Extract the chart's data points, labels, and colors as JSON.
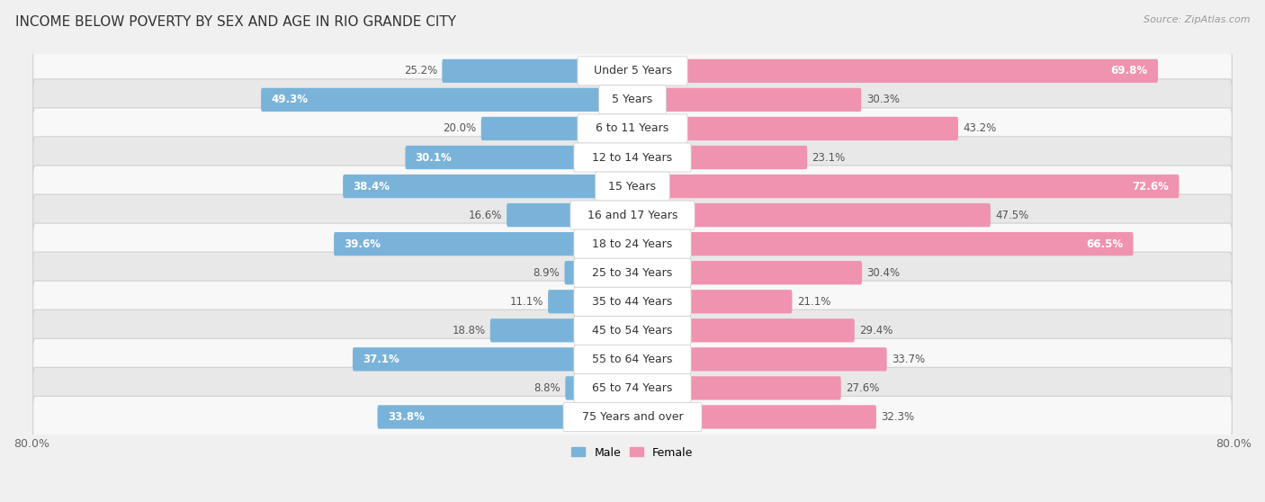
{
  "title": "INCOME BELOW POVERTY BY SEX AND AGE IN RIO GRANDE CITY",
  "source": "Source: ZipAtlas.com",
  "categories": [
    "Under 5 Years",
    "5 Years",
    "6 to 11 Years",
    "12 to 14 Years",
    "15 Years",
    "16 and 17 Years",
    "18 to 24 Years",
    "25 to 34 Years",
    "35 to 44 Years",
    "45 to 54 Years",
    "55 to 64 Years",
    "65 to 74 Years",
    "75 Years and over"
  ],
  "male": [
    25.2,
    49.3,
    20.0,
    30.1,
    38.4,
    16.6,
    39.6,
    8.9,
    11.1,
    18.8,
    37.1,
    8.8,
    33.8
  ],
  "female": [
    69.8,
    30.3,
    43.2,
    23.1,
    72.6,
    47.5,
    66.5,
    30.4,
    21.1,
    29.4,
    33.7,
    27.6,
    32.3
  ],
  "male_color": "#7ab3d9",
  "female_color": "#f093b0",
  "male_label": "Male",
  "female_label": "Female",
  "xlim": 80.0,
  "background_color": "#f0f0f0",
  "row_bg_even": "#f8f8f8",
  "row_bg_odd": "#e8e8e8",
  "label_badge_color": "#ffffff",
  "title_fontsize": 11,
  "tick_fontsize": 9,
  "value_fontsize": 8.5,
  "category_fontsize": 9,
  "legend_fontsize": 9,
  "source_fontsize": 8
}
